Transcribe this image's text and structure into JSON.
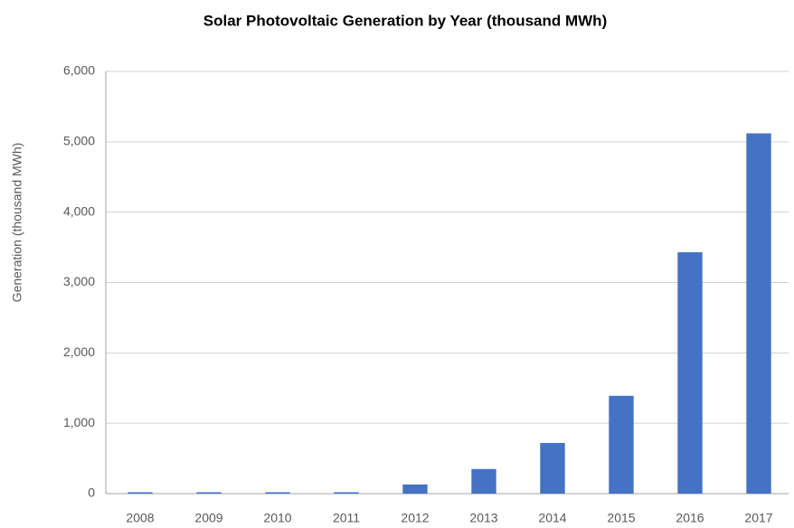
{
  "chart_data": {
    "type": "bar",
    "title": "Solar Photovoltaic Generation by Year  (thousand MWh)",
    "y_label": "Generation (thousand MWh)",
    "categories": [
      "2008",
      "2009",
      "2010",
      "2011",
      "2012",
      "2013",
      "2014",
      "2015",
      "2016",
      "2017"
    ],
    "values": [
      20,
      20,
      20,
      20,
      130,
      350,
      720,
      1390,
      3430,
      5120
    ],
    "color": "#4472c4",
    "ylim": [
      0,
      6000
    ],
    "yticks": [
      0,
      {
        "value": 1000,
        "label": "1,000"
      },
      {
        "value": 2000,
        "label": "2,000"
      },
      {
        "value": 3000,
        "label": "3,000"
      },
      {
        "value": 4000,
        "label": "4,000"
      },
      {
        "value": 5000,
        "label": "5,000"
      },
      {
        "value": 6000,
        "label": "6,000"
      }
    ],
    "grid": true
  }
}
